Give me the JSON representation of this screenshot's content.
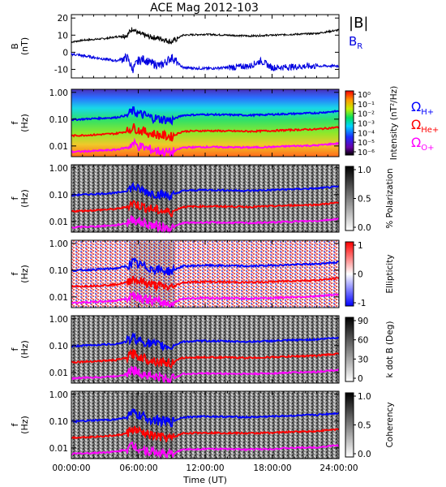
{
  "chart_data": {
    "title": "ACE Mag 2012-103",
    "type": "multi-panel line + spectrogram",
    "x_axis": {
      "label": "Time (UT)",
      "range_hours": [
        0,
        24
      ],
      "ticks": [
        "00:00:00",
        "06:00:00",
        "12:00:00",
        "18:00:00",
        "24:00:00"
      ]
    },
    "line_panel": {
      "ylabel": "B",
      "yunit": "(nT)",
      "ylim": [
        -15,
        22
      ],
      "yticks": [
        "20",
        "10",
        "0",
        "-10"
      ],
      "series": [
        {
          "name": "|B|",
          "color": "#000000",
          "x": [
            0,
            1,
            2,
            3,
            4,
            5,
            5.5,
            6,
            6.5,
            7,
            8,
            9,
            10,
            12,
            14,
            16,
            18,
            20,
            22,
            24
          ],
          "y": [
            6,
            7,
            7.5,
            8,
            9,
            10,
            14,
            11,
            10,
            9,
            8,
            6,
            10,
            10.5,
            10,
            9.5,
            10,
            10.5,
            11,
            13
          ]
        },
        {
          "name": "B",
          "subscript": "R",
          "color": "#0000e0",
          "x": [
            0,
            1,
            2,
            3,
            4,
            5,
            5.5,
            6,
            6.5,
            7,
            8,
            9,
            10,
            12,
            14,
            16,
            17,
            18,
            20,
            22,
            24
          ],
          "y": [
            -1,
            -2,
            -3,
            -4,
            -5,
            -3,
            -10,
            -5,
            -4,
            -6,
            -8,
            -3,
            -9,
            -9.5,
            -9,
            -8,
            -5,
            -9,
            -8.5,
            -8,
            -8
          ]
        }
      ]
    },
    "spectrogram_panels": [
      {
        "ylabel": "f",
        "yunit": "(Hz)",
        "colorbar_label": "Intensity (nT²/Hz)",
        "colormap": "rainbow",
        "colorbar_ticks": [
          "10⁰",
          "10⁻¹",
          "10⁻²",
          "10⁻³",
          "10⁻⁴",
          "10⁻⁵",
          "10⁻⁶"
        ]
      },
      {
        "ylabel": "f",
        "yunit": "(Hz)",
        "colorbar_label": "% Polarization",
        "colormap": "gray",
        "colorbar_ticks": [
          "1.0",
          "0.5",
          "0.0"
        ]
      },
      {
        "ylabel": "f",
        "yunit": "(Hz)",
        "colorbar_label": "Ellipticity",
        "colormap": "bwr",
        "colorbar_ticks": [
          "1",
          "0",
          "-1"
        ]
      },
      {
        "ylabel": "f",
        "yunit": "(Hz)",
        "colorbar_label": "k dot B (Deg)",
        "colormap": "gray",
        "colorbar_ticks": [
          "90",
          "60",
          "30",
          "0"
        ]
      },
      {
        "ylabel": "f",
        "yunit": "(Hz)",
        "colorbar_label": "Coherency",
        "colormap": "gray",
        "colorbar_ticks": [
          "1.0",
          "0.5",
          "0.0"
        ]
      }
    ],
    "spectrogram_yticks": [
      "1.00",
      "0.10",
      "0.01"
    ],
    "spectrogram_ylim_hz": [
      0.004,
      1.3
    ],
    "gyrofrequency_series": [
      {
        "name": "Ω",
        "subscript": "H+",
        "color": "#0000ff",
        "x": [
          0,
          2,
          4,
          5,
          5.5,
          6,
          7,
          8,
          9,
          10,
          12,
          14,
          16,
          18,
          20,
          22,
          24
        ],
        "y": [
          0.095,
          0.105,
          0.115,
          0.14,
          0.2,
          0.16,
          0.12,
          0.1,
          0.09,
          0.14,
          0.15,
          0.145,
          0.14,
          0.15,
          0.16,
          0.17,
          0.2
        ]
      },
      {
        "name": "Ω",
        "subscript": "He+",
        "color": "#ff0000",
        "x": [
          0,
          2,
          4,
          5,
          5.5,
          6,
          7,
          8,
          9,
          10,
          12,
          14,
          16,
          18,
          20,
          22,
          24
        ],
        "y": [
          0.024,
          0.026,
          0.029,
          0.035,
          0.05,
          0.04,
          0.03,
          0.025,
          0.022,
          0.035,
          0.037,
          0.036,
          0.035,
          0.037,
          0.04,
          0.042,
          0.05
        ]
      },
      {
        "name": "Ω",
        "subscript": "O+",
        "color": "#ff00ff",
        "x": [
          0,
          2,
          4,
          5,
          5.5,
          6,
          7,
          8,
          9,
          10,
          12,
          14,
          16,
          18,
          20,
          22,
          24
        ],
        "y": [
          0.006,
          0.0065,
          0.0072,
          0.0088,
          0.0125,
          0.01,
          0.0075,
          0.0062,
          0.0055,
          0.0088,
          0.0092,
          0.009,
          0.0088,
          0.0092,
          0.01,
          0.0105,
          0.0125
        ]
      }
    ]
  }
}
